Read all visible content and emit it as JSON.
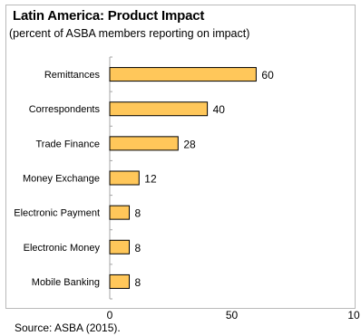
{
  "chart_data": {
    "type": "bar",
    "orientation": "horizontal",
    "title": "Latin America: Product Impact",
    "subtitle": "(percent of ASBA members reporting on impact)",
    "categories": [
      "Remittances",
      "Correspondents",
      "Trade Finance",
      "Money Exchange",
      "Electronic Payment",
      "Electronic Money",
      "Mobile Banking"
    ],
    "values": [
      60,
      40,
      28,
      12,
      8,
      8,
      8
    ],
    "xticks": [
      "0",
      "50",
      "10"
    ],
    "xlim": [
      0,
      100
    ],
    "bar_color": "#FFC75A",
    "bar_edge_color": "#000000",
    "grid": false
  },
  "source": "Source: ASBA (2015)."
}
